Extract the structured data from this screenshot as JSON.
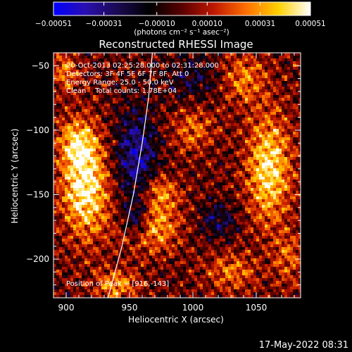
{
  "chart_data": {
    "type": "heatmap",
    "title": "Reconstructed RHESSI Image",
    "xlabel": "Heliocentric X (arcsec)",
    "ylabel": "Heliocentric Y (arcsec)",
    "xlim": [
      890,
      1085
    ],
    "ylim": [
      -230,
      -40
    ],
    "x_ticks": [
      {
        "value": 900,
        "label": "900"
      },
      {
        "value": 950,
        "label": "950"
      },
      {
        "value": 1000,
        "label": "1000"
      },
      {
        "value": 1050,
        "label": "1050"
      }
    ],
    "y_ticks": [
      {
        "value": -50,
        "label": "−50"
      },
      {
        "value": -100,
        "label": "−100"
      },
      {
        "value": -150,
        "label": "−150"
      },
      {
        "value": -200,
        "label": "−200"
      }
    ],
    "colorbar": {
      "range": [
        -0.00051,
        0.00051
      ],
      "ticks": [
        {
          "value": -0.00051,
          "label": "−0.00051"
        },
        {
          "value": -0.00031,
          "label": "−0.00031"
        },
        {
          "value": -0.0001,
          "label": "−0.00010"
        },
        {
          "value": 0.0001,
          "label": "0.00010"
        },
        {
          "value": 0.00031,
          "label": "0.00031"
        },
        {
          "value": 0.00051,
          "label": "0.00051"
        }
      ],
      "unit_label": "(photons cm⁻² s⁻¹ asec⁻²)",
      "colormap": [
        "#0000ff",
        "#2a0fb0",
        "#1a0a50",
        "#000000",
        "#5a0000",
        "#c01800",
        "#ff7000",
        "#ffd000",
        "#ffffff"
      ]
    },
    "annotations": [
      "20-Oct-2013 02:25:28.000 to 02:31:28.000",
      "Detectors: 3F 4F 5F 6F 7F 8F, Att 0",
      "Energy Range: 25.0 - 50.0 keV",
      "Clean    Total counts: 1.78E+04"
    ],
    "peak": {
      "x": 916,
      "y": -143,
      "label": "Position of Peak = [916,-143]"
    },
    "sources": [
      {
        "x": 915,
        "y": -143,
        "sx": 13,
        "sy": 28,
        "amp": 0.0005
      },
      {
        "x": 908,
        "y": -110,
        "sx": 10,
        "sy": 12,
        "amp": 0.0003
      },
      {
        "x": 965,
        "y": -175,
        "sx": 16,
        "sy": 13,
        "amp": 0.00037
      },
      {
        "x": 975,
        "y": -148,
        "sx": 10,
        "sy": 10,
        "amp": 0.00028
      },
      {
        "x": 1060,
        "y": -130,
        "sx": 12,
        "sy": 30,
        "amp": 0.00045
      },
      {
        "x": 1040,
        "y": -60,
        "sx": 12,
        "sy": 14,
        "amp": 0.00025
      },
      {
        "x": 940,
        "y": -220,
        "sx": 12,
        "sy": 8,
        "amp": 0.0003
      },
      {
        "x": 1030,
        "y": -210,
        "sx": 14,
        "sy": 10,
        "amp": 0.00024
      },
      {
        "x": 1000,
        "y": -100,
        "sx": 12,
        "sy": 12,
        "amp": 0.00022
      },
      {
        "x": 900,
        "y": -55,
        "sx": 8,
        "sy": 10,
        "amp": 0.00025
      },
      {
        "x": 1075,
        "y": -200,
        "sx": 8,
        "sy": 15,
        "amp": 0.0002
      },
      {
        "x": 955,
        "y": -120,
        "sx": 12,
        "sy": 25,
        "amp": -0.00035
      },
      {
        "x": 955,
        "y": -170,
        "sx": 8,
        "sy": 10,
        "amp": -0.0004
      },
      {
        "x": 1000,
        "y": -60,
        "sx": 14,
        "sy": 12,
        "amp": -0.00018
      },
      {
        "x": 1020,
        "y": -170,
        "sx": 10,
        "sy": 10,
        "amp": -0.00022
      }
    ],
    "limb_curve": [
      [
        933,
        -230
      ],
      [
        944,
        -190
      ],
      [
        953,
        -150
      ],
      [
        960,
        -110
      ],
      [
        965,
        -75
      ],
      [
        968,
        -40
      ]
    ]
  },
  "footer": {
    "timestamp": "17-May-2022 08:31"
  }
}
